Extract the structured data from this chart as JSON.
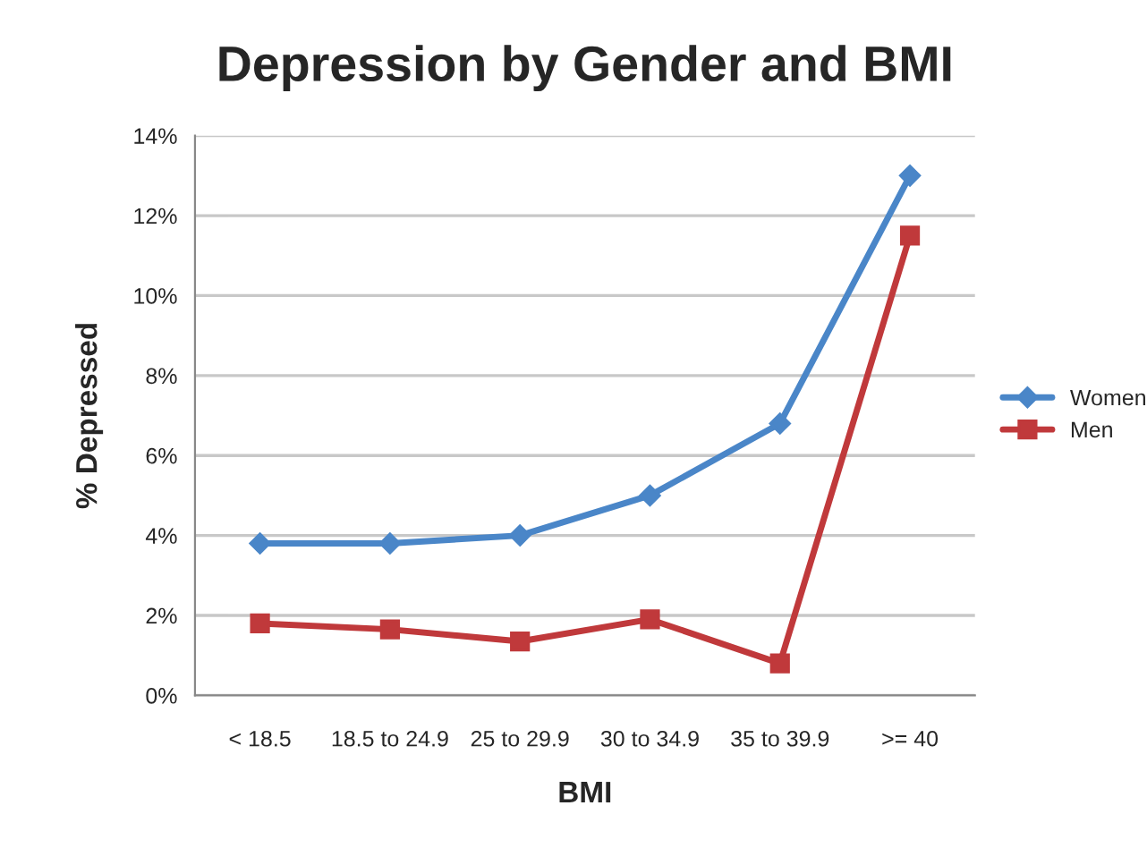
{
  "chart_data": {
    "type": "line",
    "title": "Depression by Gender and BMI",
    "xlabel": "BMI",
    "ylabel": "% Depressed",
    "categories": [
      "< 18.5",
      "18.5 to 24.9",
      "25 to 29.9",
      "30 to 34.9",
      "35 to 39.9",
      ">= 40"
    ],
    "series": [
      {
        "name": "Women",
        "color": "#4a86c8",
        "marker": "diamond",
        "values": [
          3.8,
          3.8,
          4.0,
          5.0,
          6.8,
          13.0
        ]
      },
      {
        "name": "Men",
        "color": "#c0393b",
        "marker": "square",
        "values": [
          1.8,
          1.65,
          1.35,
          1.9,
          0.8,
          11.5
        ]
      }
    ],
    "ylim": [
      0,
      14
    ],
    "yticks": [
      {
        "value": 0,
        "label": "0%"
      },
      {
        "value": 2,
        "label": "2%"
      },
      {
        "value": 4,
        "label": "4%"
      },
      {
        "value": 6,
        "label": "6%"
      },
      {
        "value": 8,
        "label": "8%"
      },
      {
        "value": 10,
        "label": "10%"
      },
      {
        "value": 12,
        "label": "12%"
      },
      {
        "value": 14,
        "label": "14%"
      }
    ],
    "grid": "y",
    "legend": "right",
    "line_style": "solid"
  }
}
